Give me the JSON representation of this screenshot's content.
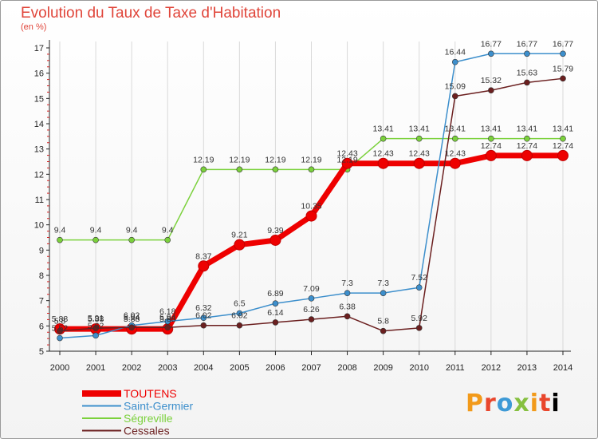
{
  "header": {
    "title": "Evolution du Taux de Taxe d'Habitation",
    "subtitle": "(en %)"
  },
  "brand": {
    "letters": [
      "P",
      "r",
      "o",
      "x",
      "i",
      "t",
      "i"
    ]
  },
  "colors": {
    "TOUTENS": "#ee0000",
    "Saint-Germier": "#3d8fcc",
    "Ségreville": "#7bd13c",
    "Cessales": "#6b1f1f",
    "axis": "#222222",
    "grid": "#d9d9d9",
    "tick_minor": "#d22222"
  },
  "chart_data": {
    "type": "line",
    "title": "Evolution du Taux de Taxe d'Habitation",
    "subtitle": "(en %)",
    "xlabel": "",
    "ylabel": "",
    "x": [
      "2000",
      "2001",
      "2002",
      "2003",
      "2004",
      "2005",
      "2006",
      "2007",
      "2008",
      "2009",
      "2010",
      "2011",
      "2012",
      "2013",
      "2014"
    ],
    "yticks": [
      "5",
      "6",
      "7",
      "8",
      "9",
      "10",
      "11",
      "12",
      "13",
      "14",
      "15",
      "16",
      "17"
    ],
    "ylim": [
      5,
      17
    ],
    "grid": false,
    "legend_position": "bottom-left",
    "series": [
      {
        "name": "TOUTENS",
        "values": [
          5.88,
          5.88,
          5.88,
          5.88,
          8.37,
          9.21,
          9.39,
          10.35,
          12.43,
          12.43,
          12.43,
          12.43,
          12.74,
          12.74,
          12.74
        ],
        "labels": [
          "5.88",
          "5.88",
          "5.88",
          "5.88",
          "8.37",
          "9.21",
          "9.39",
          "10.35",
          "12.43",
          "12.43",
          "12.43",
          "12.43",
          "12.74",
          "12.74",
          "12.74"
        ]
      },
      {
        "name": "Saint-Germier",
        "values": [
          5.52,
          5.62,
          6.02,
          6.18,
          6.32,
          6.5,
          6.89,
          7.09,
          7.3,
          7.3,
          7.52,
          16.44,
          16.77,
          16.77,
          16.77
        ],
        "labels": [
          "5.52",
          "5.62",
          "6.02",
          "6.18",
          "6.32",
          "6.5",
          "6.89",
          "7.09",
          "7.3",
          "7.3",
          "7.52",
          "16.44",
          "16.77",
          "16.77",
          "16.77"
        ]
      },
      {
        "name": "Ségreville",
        "values": [
          9.4,
          9.4,
          9.4,
          9.4,
          12.19,
          12.19,
          12.19,
          12.19,
          12.19,
          13.41,
          13.41,
          13.41,
          13.41,
          13.41,
          13.41
        ],
        "labels": [
          "9.4",
          "9.4",
          "9.4",
          "9.4",
          "12.19",
          "12.19",
          "12.19",
          "12.19",
          "12.19",
          "13.41",
          "13.41",
          "13.41",
          "13.41",
          "13.41",
          "13.41"
        ]
      },
      {
        "name": "Cessales",
        "values": [
          5.8,
          5.91,
          5.94,
          5.94,
          6.02,
          6.02,
          6.14,
          6.26,
          6.38,
          5.8,
          5.92,
          15.09,
          15.32,
          15.63,
          15.79
        ],
        "labels": [
          "5.8",
          "5.91",
          "5.94",
          "5.94",
          "6.02",
          "6.02",
          "6.14",
          "6.26",
          "6.38",
          "5.8",
          "5.92",
          "15.09",
          "15.32",
          "15.63",
          "15.79"
        ]
      }
    ]
  }
}
